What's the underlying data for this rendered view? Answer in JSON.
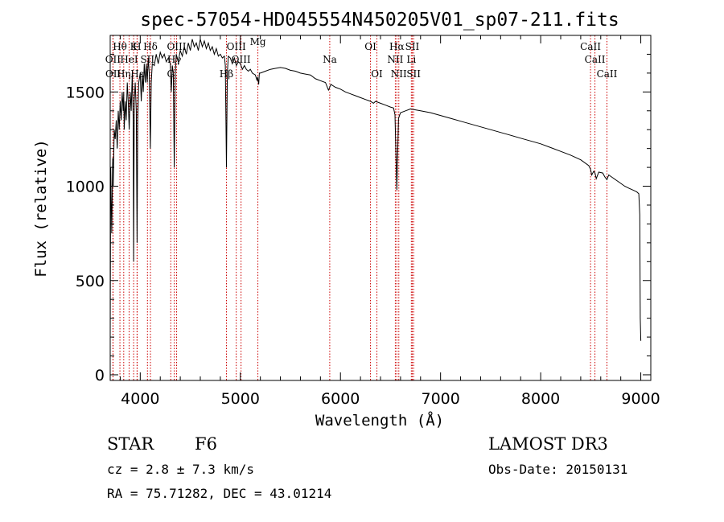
{
  "chart_data": {
    "type": "line",
    "title": "spec-57054-HD045554N450205V01_sp07-211.fits",
    "xlabel": "Wavelength (Å)",
    "ylabel": "Flux (relative)",
    "xlim": [
      3700,
      9100
    ],
    "ylim": [
      -30,
      1800
    ],
    "x_ticks": [
      4000,
      5000,
      6000,
      7000,
      8000,
      9000
    ],
    "y_ticks": [
      0,
      500,
      1000,
      1500
    ],
    "series": [
      {
        "name": "flux",
        "x": [
          3700,
          3705,
          3715,
          3725,
          3730,
          3740,
          3750,
          3760,
          3770,
          3780,
          3790,
          3800,
          3810,
          3820,
          3830,
          3835,
          3840,
          3850,
          3860,
          3870,
          3880,
          3890,
          3900,
          3910,
          3920,
          3930,
          3934,
          3940,
          3950,
          3960,
          3968,
          3975,
          3985,
          4000,
          4010,
          4020,
          4030,
          4040,
          4050,
          4060,
          4070,
          4080,
          4090,
          4101,
          4110,
          4120,
          4140,
          4160,
          4180,
          4200,
          4220,
          4240,
          4260,
          4280,
          4300,
          4310,
          4320,
          4330,
          4340,
          4350,
          4360,
          4380,
          4400,
          4420,
          4440,
          4460,
          4480,
          4500,
          4520,
          4540,
          4560,
          4580,
          4600,
          4620,
          4640,
          4660,
          4680,
          4700,
          4720,
          4740,
          4760,
          4780,
          4800,
          4820,
          4840,
          4850,
          4861,
          4870,
          4880,
          4900,
          4920,
          4940,
          4960,
          4980,
          5000,
          5020,
          5040,
          5060,
          5080,
          5100,
          5120,
          5150,
          5167,
          5172,
          5183,
          5190,
          5200,
          5250,
          5300,
          5350,
          5400,
          5450,
          5500,
          5550,
          5600,
          5650,
          5700,
          5750,
          5800,
          5850,
          5880,
          5890,
          5896,
          5905,
          5950,
          6000,
          6050,
          6100,
          6150,
          6200,
          6250,
          6300,
          6330,
          6350,
          6400,
          6450,
          6500,
          6530,
          6545,
          6555,
          6563,
          6570,
          6580,
          6600,
          6650,
          6700,
          6750,
          6800,
          6900,
          7000,
          7100,
          7200,
          7300,
          7400,
          7500,
          7600,
          7700,
          7800,
          7900,
          8000,
          8100,
          8200,
          8300,
          8400,
          8480,
          8498,
          8510,
          8530,
          8542,
          8555,
          8580,
          8620,
          8640,
          8662,
          8680,
          8720,
          8760,
          8800,
          8840,
          8880,
          8920,
          8960,
          8980,
          8990,
          8995,
          9000
        ],
        "y": [
          200,
          1100,
          750,
          1150,
          1000,
          1300,
          1250,
          1350,
          1200,
          1400,
          1300,
          1450,
          1350,
          1500,
          1400,
          1500,
          1300,
          1450,
          1350,
          1550,
          1450,
          1300,
          1500,
          1400,
          1600,
          1350,
          600,
          1450,
          1550,
          1400,
          700,
          1350,
          1550,
          1600,
          1450,
          1600,
          1500,
          1650,
          1550,
          1650,
          1550,
          1680,
          1600,
          1200,
          1550,
          1650,
          1640,
          1700,
          1650,
          1710,
          1680,
          1700,
          1660,
          1680,
          1650,
          1500,
          1640,
          1600,
          1100,
          1600,
          1700,
          1660,
          1720,
          1690,
          1740,
          1700,
          1760,
          1720,
          1780,
          1740,
          1760,
          1720,
          1780,
          1740,
          1770,
          1730,
          1760,
          1720,
          1740,
          1700,
          1730,
          1690,
          1700,
          1680,
          1690,
          1640,
          1100,
          1600,
          1690,
          1680,
          1650,
          1680,
          1640,
          1660,
          1650,
          1620,
          1640,
          1620,
          1610,
          1620,
          1600,
          1590,
          1560,
          1580,
          1540,
          1600,
          1600,
          1610,
          1620,
          1625,
          1630,
          1625,
          1615,
          1610,
          1600,
          1595,
          1590,
          1570,
          1560,
          1550,
          1510,
          1520,
          1530,
          1540,
          1525,
          1515,
          1500,
          1490,
          1480,
          1470,
          1460,
          1450,
          1440,
          1450,
          1440,
          1430,
          1420,
          1415,
          1380,
          1150,
          980,
          1150,
          1360,
          1390,
          1400,
          1410,
          1405,
          1400,
          1390,
          1375,
          1360,
          1345,
          1330,
          1315,
          1300,
          1285,
          1270,
          1255,
          1240,
          1225,
          1205,
          1185,
          1165,
          1140,
          1110,
          1090,
          1060,
          1080,
          1070,
          1040,
          1075,
          1070,
          1050,
          1035,
          1060,
          1045,
          1030,
          1015,
          1000,
          990,
          980,
          970,
          960,
          850,
          300,
          180
        ]
      }
    ],
    "line_markers": [
      {
        "label": "Hθ",
        "x": 3797,
        "row": 1
      },
      {
        "label": "OII",
        "x": 3727,
        "row": 2
      },
      {
        "label": "OII",
        "x": 3729,
        "row": 3
      },
      {
        "label": "Hη",
        "x": 3835,
        "row": 3
      },
      {
        "label": "K",
        "x": 3934,
        "row": 1
      },
      {
        "label": "H",
        "x": 3968,
        "row": 1
      },
      {
        "label": "HeI",
        "x": 3889,
        "row": 2
      },
      {
        "label": "Hε",
        "x": 3970,
        "row": 3
      },
      {
        "label": "Hδ",
        "x": 4102,
        "row": 1
      },
      {
        "label": "SII",
        "x": 4072,
        "row": 2
      },
      {
        "label": "OIII",
        "x": 4363,
        "row": 1
      },
      {
        "label": "Hγ",
        "x": 4340,
        "row": 2
      },
      {
        "label": "G",
        "x": 4305,
        "row": 3
      },
      {
        "label": "OIII",
        "x": 4959,
        "row": 1
      },
      {
        "label": "OIII",
        "x": 5007,
        "row": 2
      },
      {
        "label": "Hβ",
        "x": 4861,
        "row": 3
      },
      {
        "label": "Mg",
        "x": 5175,
        "row": 0
      },
      {
        "label": "Na",
        "x": 5893,
        "row": 2
      },
      {
        "label": "OI",
        "x": 6300,
        "row": 1
      },
      {
        "label": "OI",
        "x": 6364,
        "row": 3
      },
      {
        "label": "Hα",
        "x": 6563,
        "row": 1
      },
      {
        "label": "NII",
        "x": 6548,
        "row": 2
      },
      {
        "label": "NII",
        "x": 6583,
        "row": 3
      },
      {
        "label": "SII",
        "x": 6717,
        "row": 1
      },
      {
        "label": "Li",
        "x": 6708,
        "row": 2
      },
      {
        "label": "SII",
        "x": 6731,
        "row": 3
      },
      {
        "label": "CaII",
        "x": 8498,
        "row": 1
      },
      {
        "label": "CaII",
        "x": 8542,
        "row": 2
      },
      {
        "label": "CaII",
        "x": 8662,
        "row": 3
      }
    ]
  },
  "info": {
    "object_class": "STAR",
    "subclass": "F6",
    "survey": "LAMOST DR3",
    "cz": "cz = 2.8 ± 7.3 km/s",
    "obs_date": "Obs-Date: 20150131",
    "coords": "RA =  75.71282, DEC =  43.01214"
  },
  "colors": {
    "spectrum": "#000000",
    "marker_line": "#cc0000",
    "axes": "#000000",
    "background": "#ffffff"
  }
}
